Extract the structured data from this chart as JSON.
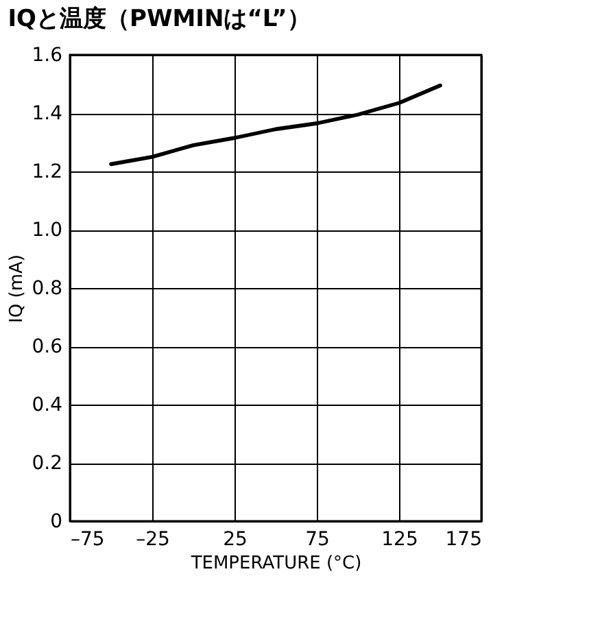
{
  "chart_data": {
    "type": "line",
    "title": "IQと温度（PWMINは“L”）",
    "xlabel": "TEMPERATURE (°C)",
    "ylabel": "IQ (mA)",
    "x": [
      -50,
      -25,
      0,
      25,
      50,
      75,
      100,
      125,
      150
    ],
    "series": [
      {
        "color": "#000000",
        "values": [
          1.225,
          1.25,
          1.29,
          1.315,
          1.345,
          1.365,
          1.395,
          1.435,
          1.495
        ]
      }
    ],
    "xlim": [
      -75,
      175
    ],
    "xticks": [
      {
        "value": -75,
        "label": "–75"
      },
      {
        "value": -25,
        "label": "–25"
      },
      25,
      75,
      125,
      175
    ],
    "ylim": [
      0,
      1.6
    ],
    "yticks": [
      0,
      0.2,
      0.4,
      0.6,
      0.8,
      {
        "value": 1,
        "label": "1.0"
      },
      1.2,
      1.4,
      1.6
    ],
    "grid": true,
    "marker": "none",
    "line_style": "solid",
    "legend": false
  }
}
